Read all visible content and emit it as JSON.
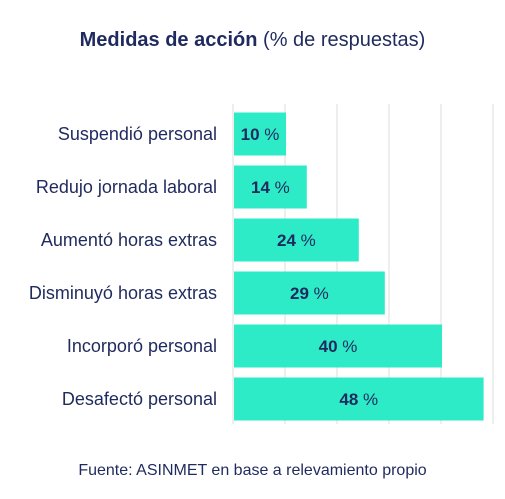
{
  "title": {
    "main": "Medidas de acción",
    "subtitle": "(% de respuestas)"
  },
  "chart_data": {
    "type": "bar",
    "orientation": "horizontal",
    "title": "Medidas de acción",
    "subtitle": "(% de respuestas)",
    "categories": [
      "Suspendió personal",
      "Redujo jornada laboral",
      "Aumentó horas extras",
      "Disminuyó horas extras",
      "Incorporó personal",
      "Desafectó personal"
    ],
    "values": [
      10,
      14,
      24,
      29,
      40,
      48
    ],
    "value_labels": [
      "10 %",
      "14 %",
      "24 %",
      "29 %",
      "40 %",
      "48 %"
    ],
    "xlim": [
      0,
      50
    ],
    "grid": true,
    "bar_color": "#2eebc8",
    "label_color": "#1f2a5e"
  },
  "source": "Fuente: ASINMET en base a relevamiento propio"
}
